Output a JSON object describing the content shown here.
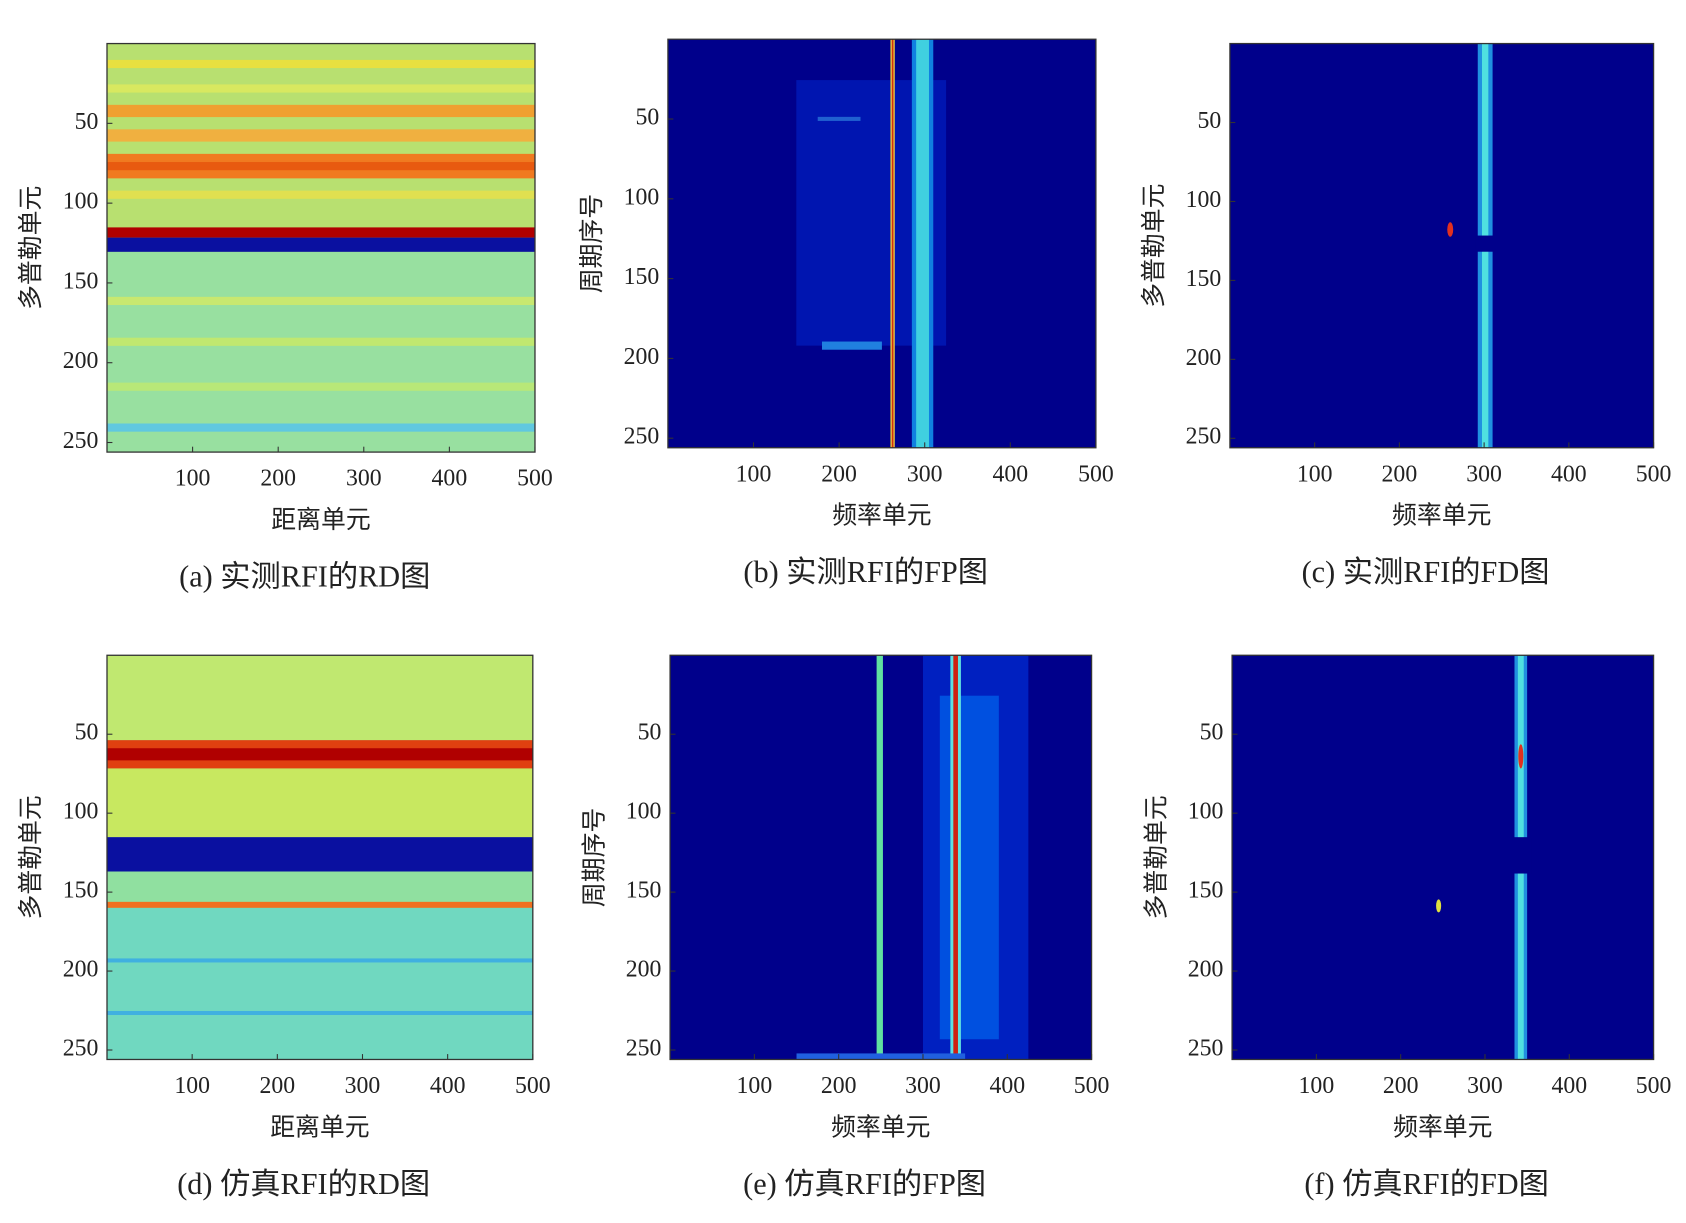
{
  "chart_data": [
    {
      "type": "heatmap",
      "title": "(a) 实测RFI的RD图",
      "xlabel": "距离单元",
      "ylabel": "多普勒单元",
      "xlim": [
        0,
        500
      ],
      "xticks": [
        100,
        200,
        300,
        400,
        500
      ],
      "ylim": [
        0,
        256
      ],
      "yticks": [
        50,
        100,
        150,
        200,
        250
      ]
    },
    {
      "type": "heatmap",
      "title": "(b) 实测RFI的FP图",
      "xlabel": "频率单元",
      "ylabel": "周期序号",
      "xlim": [
        0,
        500
      ],
      "xticks": [
        100,
        200,
        300,
        400,
        500
      ],
      "ylim": [
        0,
        256
      ],
      "yticks": [
        50,
        100,
        150,
        200,
        250
      ]
    },
    {
      "type": "heatmap",
      "title": "(c) 实测RFI的FD图",
      "xlabel": "频率单元",
      "ylabel": "多普勒单元",
      "xlim": [
        0,
        500
      ],
      "xticks": [
        100,
        200,
        300,
        400,
        500
      ],
      "ylim": [
        0,
        256
      ],
      "yticks": [
        50,
        100,
        150,
        200,
        250
      ]
    },
    {
      "type": "heatmap",
      "title": "(d) 仿真RFI的RD图",
      "xlabel": "距离单元",
      "ylabel": "多普勒单元",
      "xlim": [
        0,
        500
      ],
      "xticks": [
        100,
        200,
        300,
        400,
        500
      ],
      "ylim": [
        0,
        256
      ],
      "yticks": [
        50,
        100,
        150,
        200,
        250
      ]
    },
    {
      "type": "heatmap",
      "title": "(e) 仿真RFI的FP图",
      "xlabel": "频率单元",
      "ylabel": "周期序号",
      "xlim": [
        0,
        500
      ],
      "xticks": [
        100,
        200,
        300,
        400,
        500
      ],
      "ylim": [
        0,
        256
      ],
      "yticks": [
        50,
        100,
        150,
        200,
        250
      ]
    },
    {
      "type": "heatmap",
      "title": "(f) 仿真RFI的FD图",
      "xlabel": "频率单元",
      "ylabel": "多普勒单元",
      "xlim": [
        0,
        500
      ],
      "xticks": [
        100,
        200,
        300,
        400,
        500
      ],
      "ylim": [
        0,
        256
      ],
      "yticks": [
        50,
        100,
        150,
        200,
        250
      ]
    }
  ]
}
